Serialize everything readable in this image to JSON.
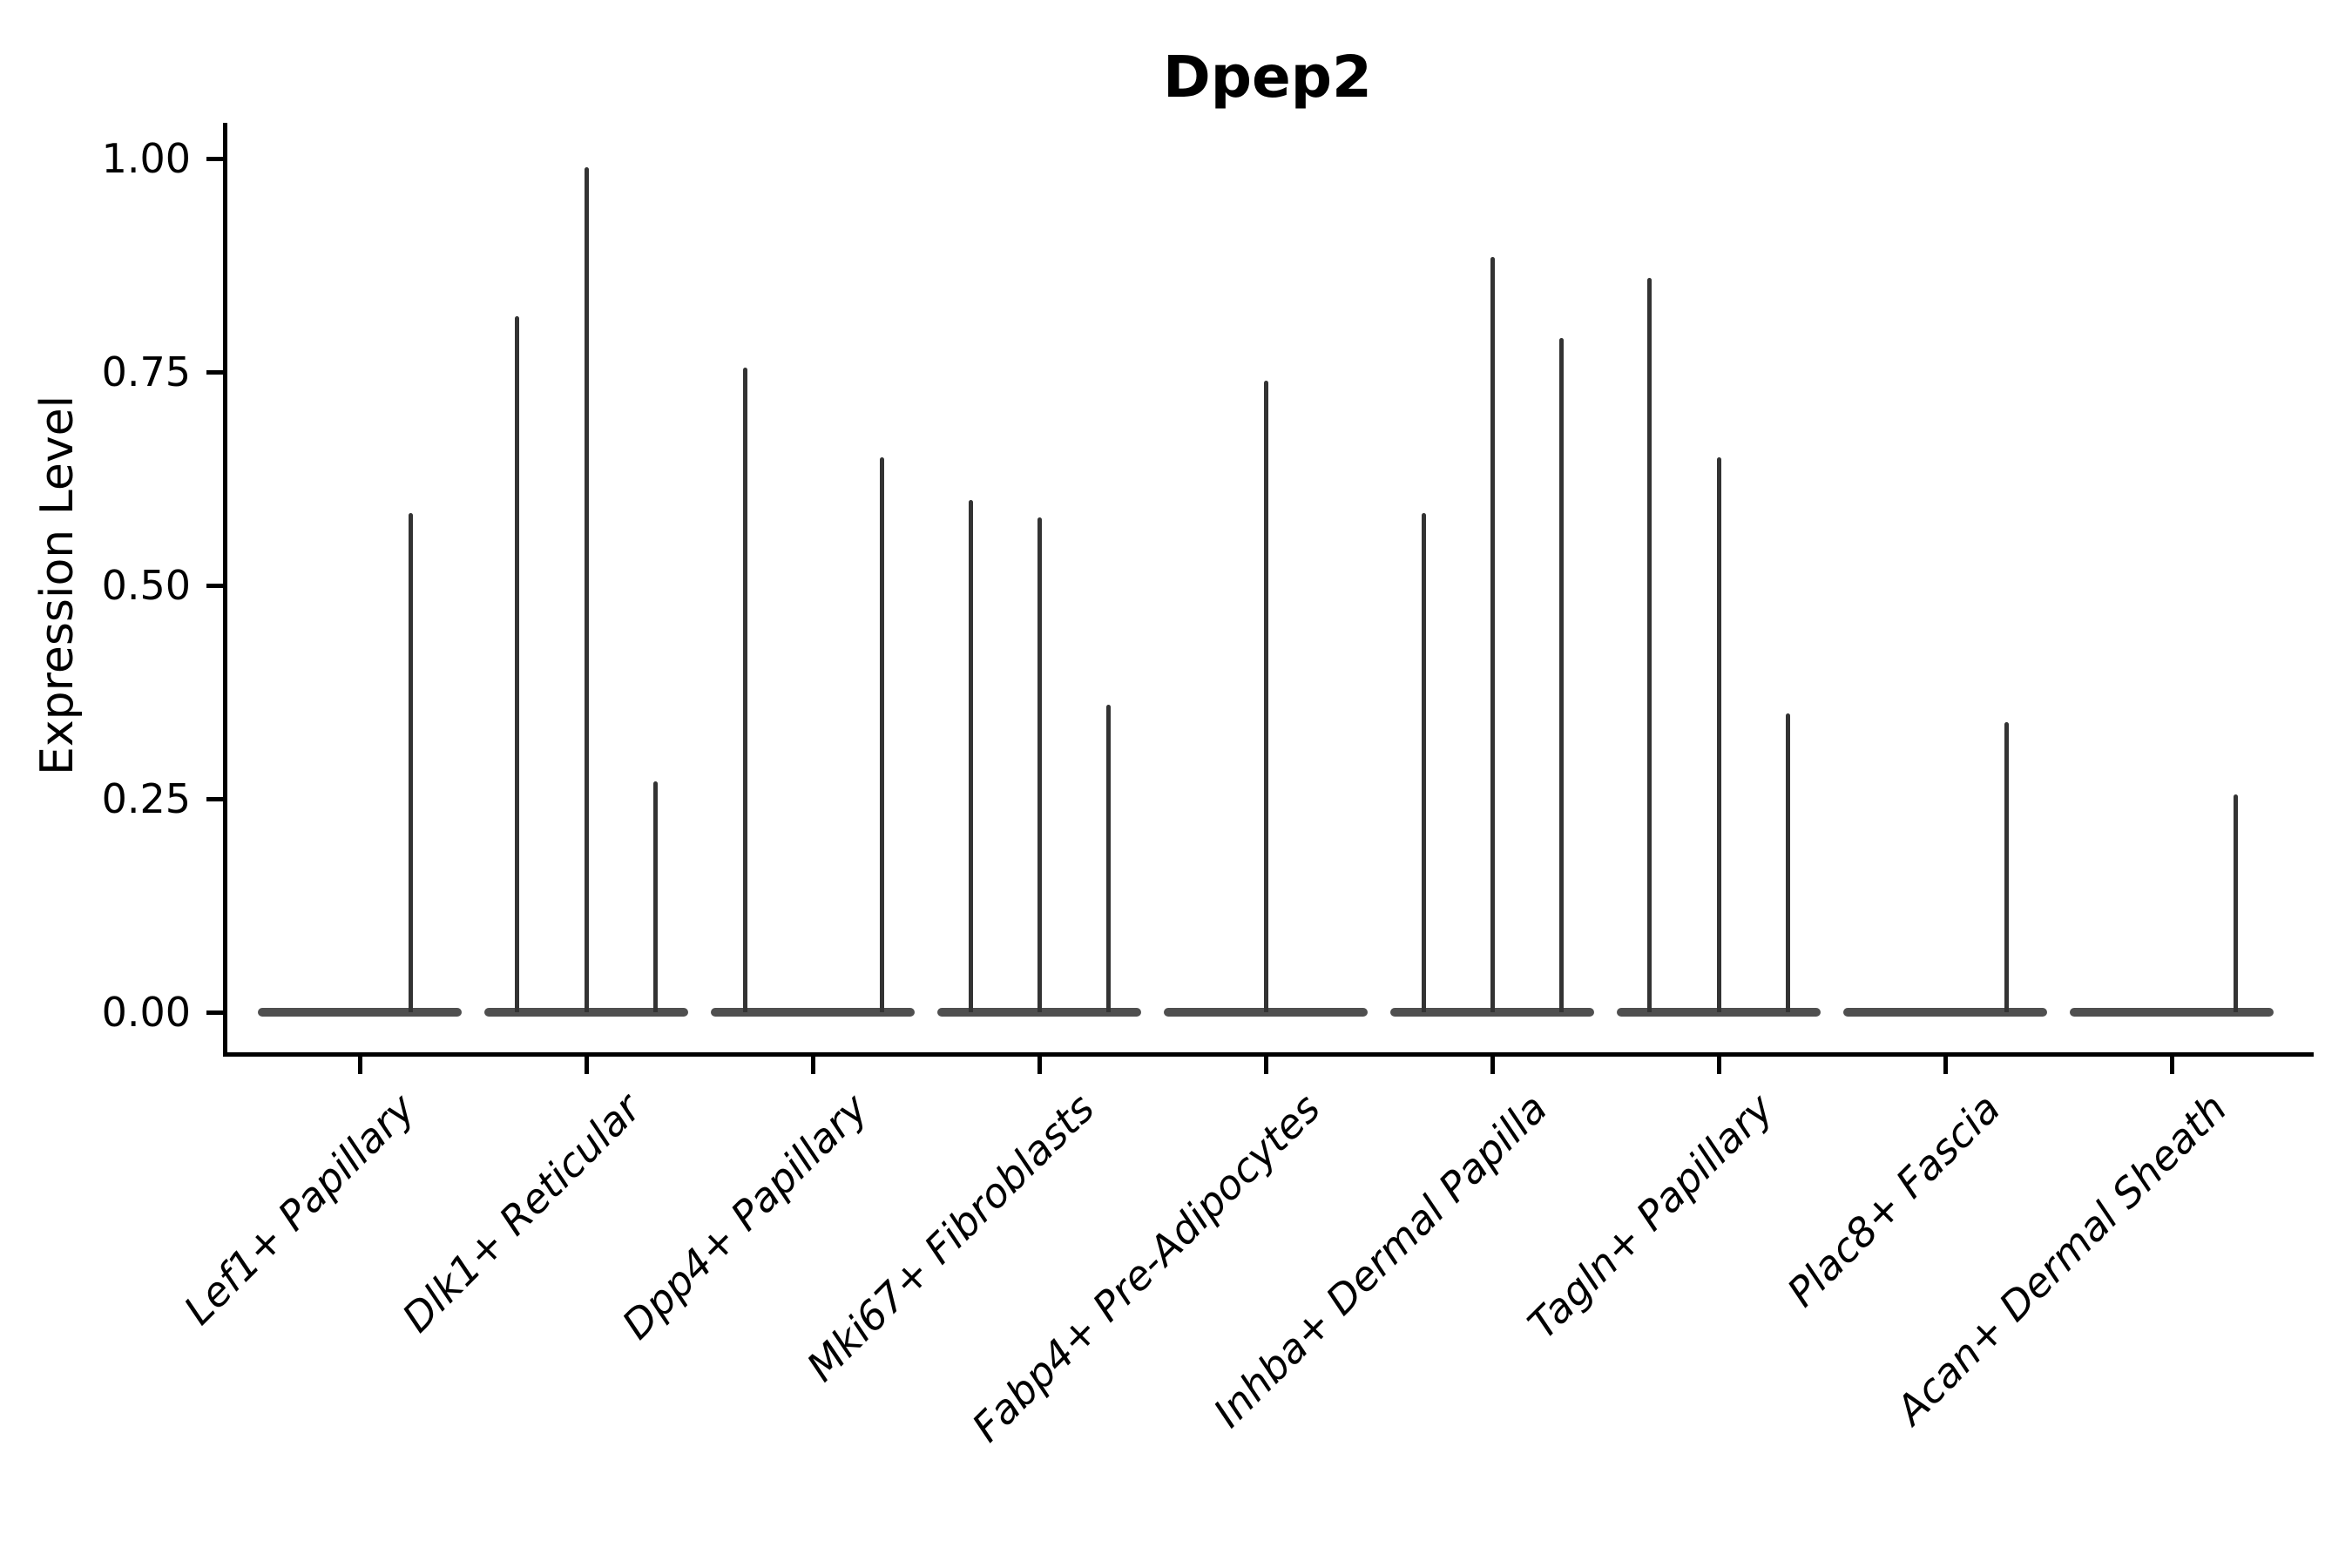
{
  "title": "Dpep2",
  "chart_data": {
    "type": "violin",
    "title": "Dpep2",
    "xlabel": "",
    "ylabel": "Expression Level",
    "ylim": [
      -0.047,
      1.066
    ],
    "y_ticks": [
      0.0,
      0.25,
      0.5,
      0.75,
      1.0
    ],
    "y_tick_labels": [
      "0.00",
      "0.25",
      "0.50",
      "0.75",
      "1.00"
    ],
    "x_tick_rotation_deg": 45,
    "grid": false,
    "legend": "none",
    "categories": [
      "Lef1+ Papillary",
      "Dlk1+ Reticular",
      "Dpp4+ Papillary",
      "Mki67+ Fibroblasts",
      "Fabp4+ Pre-Adipocytes",
      "Inhba+ Dermal Papilla",
      "Tagln+ Papillary",
      "Plac8+ Fascia",
      "Acan+ Dermal Sheath"
    ],
    "description": "Each category shows a violin collapsed onto a flat base at expression 0 with thin vertical density spikes; offset_frac is the spike position within the violin (-1 left edge, 0 center, +1 right edge), value is the spike top in Expression Level units.",
    "groups": [
      {
        "label": "Lef1+ Papillary",
        "baseline_value": 0.0,
        "spikes": [
          {
            "offset_frac": 0.5,
            "value": 0.585
          }
        ]
      },
      {
        "label": "Dlk1+ Reticular",
        "baseline_value": 0.0,
        "spikes": [
          {
            "offset_frac": -0.68,
            "value": 0.815
          },
          {
            "offset_frac": 0.0,
            "value": 0.99
          },
          {
            "offset_frac": 0.68,
            "value": 0.27
          }
        ]
      },
      {
        "label": "Dpp4+ Papillary",
        "baseline_value": 0.0,
        "spikes": [
          {
            "offset_frac": -0.66,
            "value": 0.755
          },
          {
            "offset_frac": 0.68,
            "value": 0.65
          }
        ]
      },
      {
        "label": "Mki67+ Fibroblasts",
        "baseline_value": 0.0,
        "spikes": [
          {
            "offset_frac": -0.67,
            "value": 0.6
          },
          {
            "offset_frac": 0.0,
            "value": 0.58
          },
          {
            "offset_frac": 0.68,
            "value": 0.36
          }
        ]
      },
      {
        "label": "Fabp4+ Pre-Adipocytes",
        "baseline_value": 0.0,
        "spikes": [
          {
            "offset_frac": 0.0,
            "value": 0.74
          }
        ]
      },
      {
        "label": "Inhba+ Dermal Papilla",
        "baseline_value": 0.0,
        "spikes": [
          {
            "offset_frac": -0.67,
            "value": 0.585
          },
          {
            "offset_frac": 0.0,
            "value": 0.885
          },
          {
            "offset_frac": 0.68,
            "value": 0.79
          }
        ]
      },
      {
        "label": "Tagln+ Papillary",
        "baseline_value": 0.0,
        "spikes": [
          {
            "offset_frac": -0.68,
            "value": 0.86
          },
          {
            "offset_frac": 0.0,
            "value": 0.65
          },
          {
            "offset_frac": 0.68,
            "value": 0.35
          }
        ]
      },
      {
        "label": "Plac8+ Fascia",
        "baseline_value": 0.0,
        "spikes": [
          {
            "offset_frac": 0.6,
            "value": 0.34
          }
        ]
      },
      {
        "label": "Acan+ Dermal Sheath",
        "baseline_value": 0.0,
        "spikes": [
          {
            "offset_frac": 0.63,
            "value": 0.255
          }
        ]
      }
    ],
    "style": {
      "spike_color": "#333333",
      "base_color": "#4f4f4f",
      "axis_color": "#000000",
      "text_color": "#000000",
      "background_color": "#ffffff"
    }
  }
}
